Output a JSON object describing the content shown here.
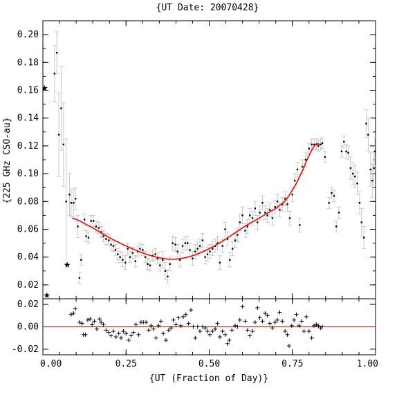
{
  "chart_data": [
    {
      "type": "scatter",
      "title": "{UT Date: 20070428}",
      "xlabel": "",
      "ylabel": "{225 GHz CSO-au}",
      "xlim": [
        0,
        1
      ],
      "ylim": [
        0.01,
        0.21
      ],
      "yticks": [
        "0.02",
        "0.04",
        "0.06",
        "0.08",
        "0.10",
        "0.12",
        "0.14",
        "0.16",
        "0.18",
        "0.20"
      ],
      "colors": {
        "points": "#000000",
        "errorbars": "#c8c8c8",
        "fit": "#ff0000"
      },
      "stars": [
        [
          0.005,
          0.162
        ],
        [
          0.012,
          0.013
        ],
        [
          0.073,
          0.035
        ]
      ],
      "points": [
        [
          0.035,
          0.172,
          0.02
        ],
        [
          0.042,
          0.187,
          0.015
        ],
        [
          0.048,
          0.128,
          0.03
        ],
        [
          0.055,
          0.147,
          0.03
        ],
        [
          0.062,
          0.121,
          0.03
        ],
        [
          0.07,
          0.08,
          0.045
        ],
        [
          0.08,
          0.085,
          0.015
        ],
        [
          0.085,
          0.079,
          0.01
        ],
        [
          0.092,
          0.079,
          0.01
        ],
        [
          0.098,
          0.082,
          0.008
        ],
        [
          0.105,
          0.062,
          0.008
        ],
        [
          0.11,
          0.025,
          0.004
        ],
        [
          0.115,
          0.038,
          0.004
        ],
        [
          0.125,
          0.067,
          0.004
        ],
        [
          0.13,
          0.055,
          0.004
        ],
        [
          0.137,
          0.054,
          0.004
        ],
        [
          0.145,
          0.066,
          0.004
        ],
        [
          0.152,
          0.066,
          0.004
        ],
        [
          0.16,
          0.062,
          0.004
        ],
        [
          0.168,
          0.061,
          0.004
        ],
        [
          0.175,
          0.058,
          0.004
        ],
        [
          0.182,
          0.055,
          0.004
        ],
        [
          0.19,
          0.053,
          0.004
        ],
        [
          0.198,
          0.052,
          0.004
        ],
        [
          0.205,
          0.049,
          0.004
        ],
        [
          0.212,
          0.048,
          0.004
        ],
        [
          0.218,
          0.045,
          0.004
        ],
        [
          0.225,
          0.042,
          0.004
        ],
        [
          0.232,
          0.04,
          0.004
        ],
        [
          0.24,
          0.038,
          0.005
        ],
        [
          0.248,
          0.036,
          0.005
        ],
        [
          0.255,
          0.046,
          0.004
        ],
        [
          0.262,
          0.04,
          0.004
        ],
        [
          0.27,
          0.043,
          0.004
        ],
        [
          0.278,
          0.037,
          0.004
        ],
        [
          0.285,
          0.044,
          0.004
        ],
        [
          0.292,
          0.046,
          0.004
        ],
        [
          0.3,
          0.045,
          0.004
        ],
        [
          0.308,
          0.04,
          0.004
        ],
        [
          0.315,
          0.035,
          0.004
        ],
        [
          0.322,
          0.034,
          0.004
        ],
        [
          0.33,
          0.041,
          0.004
        ],
        [
          0.338,
          0.042,
          0.004
        ],
        [
          0.345,
          0.039,
          0.004
        ],
        [
          0.352,
          0.034,
          0.004
        ],
        [
          0.36,
          0.038,
          0.006
        ],
        [
          0.368,
          0.03,
          0.006
        ],
        [
          0.375,
          0.026,
          0.005
        ],
        [
          0.382,
          0.035,
          0.005
        ],
        [
          0.39,
          0.05,
          0.005
        ],
        [
          0.398,
          0.049,
          0.005
        ],
        [
          0.405,
          0.044,
          0.005
        ],
        [
          0.412,
          0.038,
          0.005
        ],
        [
          0.42,
          0.048,
          0.005
        ],
        [
          0.428,
          0.05,
          0.005
        ],
        [
          0.435,
          0.05,
          0.005
        ],
        [
          0.442,
          0.045,
          0.005
        ],
        [
          0.45,
          0.039,
          0.005
        ],
        [
          0.458,
          0.044,
          0.005
        ],
        [
          0.465,
          0.046,
          0.005
        ],
        [
          0.472,
          0.048,
          0.005
        ],
        [
          0.48,
          0.052,
          0.005
        ],
        [
          0.488,
          0.04,
          0.005
        ],
        [
          0.495,
          0.042,
          0.005
        ],
        [
          0.502,
          0.044,
          0.005
        ],
        [
          0.51,
          0.046,
          0.005
        ],
        [
          0.518,
          0.048,
          0.005
        ],
        [
          0.525,
          0.05,
          0.005
        ],
        [
          0.532,
          0.036,
          0.005
        ],
        [
          0.54,
          0.048,
          0.005
        ],
        [
          0.548,
          0.06,
          0.005
        ],
        [
          0.555,
          0.053,
          0.005
        ],
        [
          0.562,
          0.038,
          0.005
        ],
        [
          0.57,
          0.046,
          0.005
        ],
        [
          0.578,
          0.052,
          0.005
        ],
        [
          0.585,
          0.056,
          0.005
        ],
        [
          0.592,
          0.065,
          0.006
        ],
        [
          0.6,
          0.07,
          0.006
        ],
        [
          0.608,
          0.059,
          0.005
        ],
        [
          0.615,
          0.062,
          0.005
        ],
        [
          0.622,
          0.07,
          0.005
        ],
        [
          0.63,
          0.068,
          0.005
        ],
        [
          0.638,
          0.075,
          0.005
        ],
        [
          0.645,
          0.065,
          0.005
        ],
        [
          0.652,
          0.072,
          0.005
        ],
        [
          0.66,
          0.079,
          0.005
        ],
        [
          0.668,
          0.072,
          0.005
        ],
        [
          0.675,
          0.07,
          0.005
        ],
        [
          0.682,
          0.074,
          0.005
        ],
        [
          0.69,
          0.068,
          0.005
        ],
        [
          0.698,
          0.076,
          0.005
        ],
        [
          0.705,
          0.08,
          0.005
        ],
        [
          0.712,
          0.074,
          0.005
        ],
        [
          0.72,
          0.078,
          0.005
        ],
        [
          0.728,
          0.082,
          0.005
        ],
        [
          0.735,
          0.078,
          0.005
        ],
        [
          0.742,
          0.068,
          0.005
        ],
        [
          0.75,
          0.085,
          0.005
        ],
        [
          0.757,
          0.095,
          0.005
        ],
        [
          0.765,
          0.103,
          0.005
        ],
        [
          0.772,
          0.063,
          0.005
        ],
        [
          0.78,
          0.105,
          0.005
        ],
        [
          0.79,
          0.11,
          0.005
        ],
        [
          0.8,
          0.118,
          0.004
        ],
        [
          0.808,
          0.121,
          0.004
        ],
        [
          0.815,
          0.121,
          0.004
        ],
        [
          0.822,
          0.121,
          0.004
        ],
        [
          0.828,
          0.12,
          0.004
        ],
        [
          0.835,
          0.121,
          0.004
        ],
        [
          0.84,
          0.122,
          0.004
        ],
        [
          0.848,
          0.112,
          0.004
        ],
        [
          0.86,
          0.079,
          0.004
        ],
        [
          0.868,
          0.086,
          0.004
        ],
        [
          0.875,
          0.084,
          0.004
        ],
        [
          0.882,
          0.062,
          0.004
        ],
        [
          0.89,
          0.072,
          0.004
        ],
        [
          0.898,
          0.116,
          0.004
        ],
        [
          0.905,
          0.123,
          0.004
        ],
        [
          0.912,
          0.116,
          0.005
        ],
        [
          0.918,
          0.115,
          0.005
        ],
        [
          0.925,
          0.104,
          0.008
        ],
        [
          0.932,
          0.1,
          0.008
        ],
        [
          0.938,
          0.098,
          0.008
        ],
        [
          0.945,
          0.093,
          0.008
        ],
        [
          0.952,
          0.079,
          0.008
        ],
        [
          0.958,
          0.065,
          0.01
        ],
        [
          0.965,
          0.054,
          0.008
        ],
        [
          0.972,
          0.136,
          0.01
        ],
        [
          0.978,
          0.128,
          0.012
        ],
        [
          0.985,
          0.103,
          0.012
        ],
        [
          0.99,
          0.095,
          0.012
        ],
        [
          0.995,
          0.104,
          0.012
        ],
        [
          0.998,
          0.116,
          0.01
        ]
      ],
      "fit": {
        "x_range": [
          0.088,
          0.833
        ],
        "x": [
          0.088,
          0.15,
          0.2,
          0.25,
          0.3,
          0.35,
          0.4,
          0.45,
          0.5,
          0.55,
          0.6,
          0.65,
          0.7,
          0.73,
          0.76,
          0.78,
          0.8,
          0.82,
          0.833
        ],
        "y": [
          0.068,
          0.061,
          0.054,
          0.048,
          0.043,
          0.0395,
          0.0385,
          0.041,
          0.046,
          0.053,
          0.061,
          0.068,
          0.075,
          0.081,
          0.092,
          0.102,
          0.113,
          0.121,
          0.121
        ]
      }
    },
    {
      "type": "scatter",
      "title": "",
      "xlabel": "{UT (Fraction of Day)}",
      "ylabel": "",
      "xlim": [
        0,
        1
      ],
      "ylim": [
        -0.025,
        0.025
      ],
      "yticks": [
        "-0.02",
        "0.00",
        "0.02"
      ],
      "xticks": [
        "0.00",
        "0.25",
        "0.50",
        "0.75",
        "1.00"
      ],
      "zero_line": true,
      "residuals": [
        [
          0.085,
          0.011
        ],
        [
          0.092,
          0.012
        ],
        [
          0.098,
          0.016
        ],
        [
          0.11,
          0.004
        ],
        [
          0.118,
          0.003
        ],
        [
          0.122,
          -0.007
        ],
        [
          0.128,
          -0.007
        ],
        [
          0.135,
          0.006
        ],
        [
          0.142,
          0.007
        ],
        [
          0.148,
          0.002
        ],
        [
          0.155,
          0.005
        ],
        [
          0.162,
          -0.002
        ],
        [
          0.17,
          0.007
        ],
        [
          0.175,
          0.004
        ],
        [
          0.182,
          0.002
        ],
        [
          0.19,
          -0.003
        ],
        [
          0.198,
          -0.005
        ],
        [
          0.205,
          -0.008
        ],
        [
          0.212,
          -0.004
        ],
        [
          0.22,
          -0.009
        ],
        [
          0.228,
          -0.006
        ],
        [
          0.235,
          -0.01
        ],
        [
          0.242,
          -0.004
        ],
        [
          0.25,
          -0.006
        ],
        [
          0.258,
          -0.012
        ],
        [
          0.265,
          -0.008
        ],
        [
          0.272,
          -0.005
        ],
        [
          0.28,
          0.002
        ],
        [
          0.288,
          -0.007
        ],
        [
          0.295,
          0.004
        ],
        [
          0.302,
          0.004
        ],
        [
          0.31,
          0.004
        ],
        [
          0.318,
          -0.003
        ],
        [
          0.325,
          0.001
        ],
        [
          0.332,
          -0.002
        ],
        [
          0.34,
          -0.01
        ],
        [
          0.348,
          0.001
        ],
        [
          0.355,
          0.005
        ],
        [
          0.362,
          -0.006
        ],
        [
          0.37,
          -0.012
        ],
        [
          0.378,
          -0.003
        ],
        [
          0.385,
          -0.001
        ],
        [
          0.392,
          0.006
        ],
        [
          0.4,
          0.002
        ],
        [
          0.408,
          0.008
        ],
        [
          0.415,
          0.001
        ],
        [
          0.422,
          0.009
        ],
        [
          0.43,
          0.011
        ],
        [
          0.438,
          0.003
        ],
        [
          0.445,
          0.015
        ],
        [
          0.452,
          0.0
        ],
        [
          0.458,
          -0.01
        ],
        [
          0.465,
          0.0
        ],
        [
          0.472,
          -0.004
        ],
        [
          0.48,
          0.0
        ],
        [
          0.488,
          -0.001
        ],
        [
          0.495,
          -0.004
        ],
        [
          0.502,
          -0.007
        ],
        [
          0.51,
          -0.004
        ],
        [
          0.518,
          -0.002
        ],
        [
          0.525,
          0.003
        ],
        [
          0.532,
          -0.009
        ],
        [
          0.54,
          -0.004
        ],
        [
          0.548,
          -0.007
        ],
        [
          0.555,
          -0.015
        ],
        [
          0.56,
          -0.012
        ],
        [
          0.568,
          -0.003
        ],
        [
          0.578,
          0.001
        ],
        [
          0.585,
          0.0
        ],
        [
          0.592,
          0.006
        ],
        [
          0.6,
          0.018
        ],
        [
          0.608,
          0.005
        ],
        [
          0.615,
          -0.003
        ],
        [
          0.622,
          -0.008
        ],
        [
          0.63,
          -0.004
        ],
        [
          0.638,
          0.004
        ],
        [
          0.645,
          0.017
        ],
        [
          0.652,
          0.008
        ],
        [
          0.66,
          0.005
        ],
        [
          0.668,
          0.012
        ],
        [
          0.675,
          0.01
        ],
        [
          0.682,
          0.003
        ],
        [
          0.69,
          -0.001
        ],
        [
          0.698,
          0.004
        ],
        [
          0.705,
          0.006
        ],
        [
          0.712,
          0.013
        ],
        [
          0.72,
          0.005
        ],
        [
          0.728,
          -0.004
        ],
        [
          0.735,
          -0.007
        ],
        [
          0.74,
          -0.017
        ],
        [
          0.748,
          0.001
        ],
        [
          0.755,
          0.006
        ],
        [
          0.762,
          0.011
        ],
        [
          0.77,
          0.001
        ],
        [
          0.778,
          0.005
        ],
        [
          0.785,
          -0.004
        ],
        [
          0.792,
          0.009
        ],
        [
          0.8,
          -0.004
        ],
        [
          0.808,
          -0.01
        ],
        [
          0.815,
          0.001
        ],
        [
          0.822,
          0.002
        ],
        [
          0.828,
          0.001
        ],
        [
          0.835,
          -0.001
        ],
        [
          0.84,
          0.0
        ]
      ]
    }
  ]
}
